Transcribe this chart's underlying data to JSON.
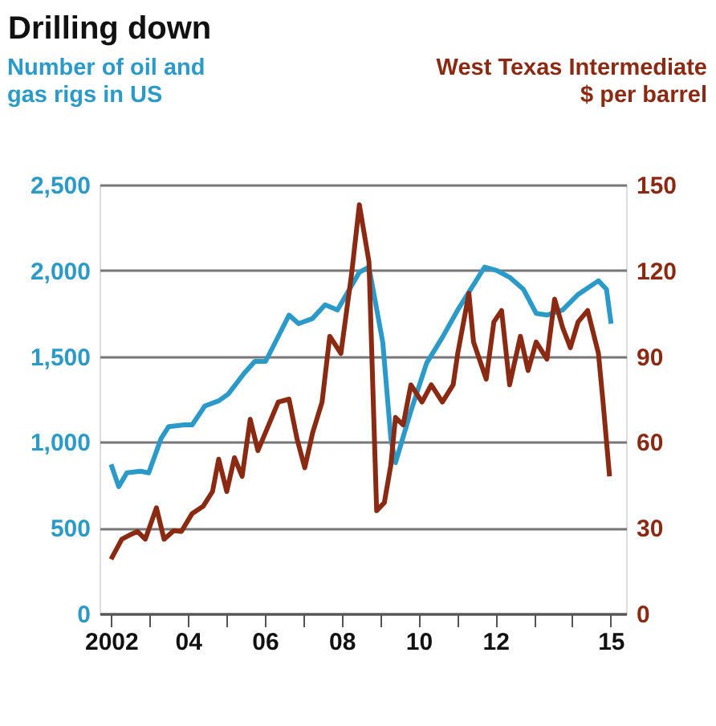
{
  "chart_data": {
    "type": "line",
    "title": "Drilling down",
    "ylabel": "Number of oil and\ngas rigs in US",
    "y2label": "West Texas Intermediate\n$ per barrel",
    "xlim": [
      2001.7,
      2015.4
    ],
    "xticks": [
      {
        "value": 2002,
        "label": "2002"
      },
      {
        "value": 2003,
        "label": null
      },
      {
        "value": 2004,
        "label": "04"
      },
      {
        "value": 2005,
        "label": null
      },
      {
        "value": 2006,
        "label": "06"
      },
      {
        "value": 2007,
        "label": null
      },
      {
        "value": 2008,
        "label": "08"
      },
      {
        "value": 2009,
        "label": null
      },
      {
        "value": 2010,
        "label": "10"
      },
      {
        "value": 2011,
        "label": null
      },
      {
        "value": 2012,
        "label": "12"
      },
      {
        "value": 2013,
        "label": null
      },
      {
        "value": 2014,
        "label": null
      },
      {
        "value": 2015,
        "label": "15"
      }
    ],
    "ylim": [
      0,
      2500
    ],
    "yticks": [
      {
        "value": 0,
        "label": "0"
      },
      {
        "value": 500,
        "label": "500"
      },
      {
        "value": 1000,
        "label": "1,000"
      },
      {
        "value": 1500,
        "label": "1,500"
      },
      {
        "value": 2000,
        "label": "2,000"
      },
      {
        "value": 2500,
        "label": "2,500"
      }
    ],
    "y2lim": [
      0,
      150
    ],
    "y2ticks": [
      0,
      30,
      60,
      90,
      120,
      150
    ],
    "grid": "y",
    "line_style": "solid",
    "marker": "none",
    "series": [
      {
        "color": "#2b9ac8",
        "x": [
          2002.0,
          2002.2,
          2002.41,
          2002.77,
          2002.98,
          2003.3,
          2003.5,
          2003.91,
          2004.11,
          2004.44,
          2004.8,
          2005.05,
          2005.46,
          2005.74,
          2006.02,
          2006.27,
          2006.63,
          2006.88,
          2007.24,
          2007.57,
          2007.89,
          2008.46,
          2008.71,
          2009.07,
          2009.28,
          2009.4,
          2009.8,
          2010.21,
          2010.62,
          2011.02,
          2011.72,
          2012.04,
          2012.37,
          2012.73,
          2013.06,
          2013.34,
          2013.75,
          2014.15,
          2014.68,
          2014.89,
          2015.01
        ],
        "values": [
          870,
          740,
          820,
          830,
          820,
          1020,
          1090,
          1100,
          1100,
          1210,
          1240,
          1280,
          1400,
          1470,
          1470,
          1580,
          1740,
          1690,
          1720,
          1800,
          1770,
          1990,
          2020,
          1580,
          1020,
          880,
          1180,
          1460,
          1610,
          1770,
          2020,
          2000,
          1960,
          1890,
          1750,
          1740,
          1770,
          1860,
          1940,
          1890,
          1690
        ]
      },
      {
        "color": "#8b2a12",
        "axis": "y2",
        "x": [
          2002,
          2002.28,
          2002.49,
          2002.69,
          2002.89,
          2003.18,
          2003.38,
          2003.63,
          2003.83,
          2004.11,
          2004.4,
          2004.64,
          2004.8,
          2005.01,
          2005.21,
          2005.41,
          2005.62,
          2005.82,
          2006.07,
          2006.35,
          2006.63,
          2006.84,
          2007.04,
          2007.24,
          2007.49,
          2007.69,
          2007.98,
          2008.26,
          2008.46,
          2008.71,
          2008.91,
          2009.11,
          2009.28,
          2009.4,
          2009.6,
          2009.8,
          2010.09,
          2010.33,
          2010.62,
          2010.9,
          2011.02,
          2011.31,
          2011.43,
          2011.76,
          2011.96,
          2012.16,
          2012.37,
          2012.65,
          2012.85,
          2013.06,
          2013.34,
          2013.54,
          2013.75,
          2013.95,
          2014.15,
          2014.4,
          2014.68,
          2014.8,
          2014.97
        ],
        "values": [
          19,
          26,
          27.5,
          28.7,
          26,
          37,
          26,
          29,
          28.7,
          35,
          37.6,
          42.7,
          54,
          42.7,
          54.5,
          48,
          68,
          57,
          65,
          74,
          75,
          61,
          51,
          63,
          74,
          97,
          91,
          119,
          143,
          123,
          36,
          38.8,
          52,
          68.6,
          66,
          80,
          74,
          80,
          74,
          80,
          91,
          112,
          95,
          82,
          102,
          106,
          80,
          97,
          85,
          95,
          89,
          110,
          100,
          93,
          102,
          106,
          91,
          74,
          48
        ]
      }
    ]
  }
}
